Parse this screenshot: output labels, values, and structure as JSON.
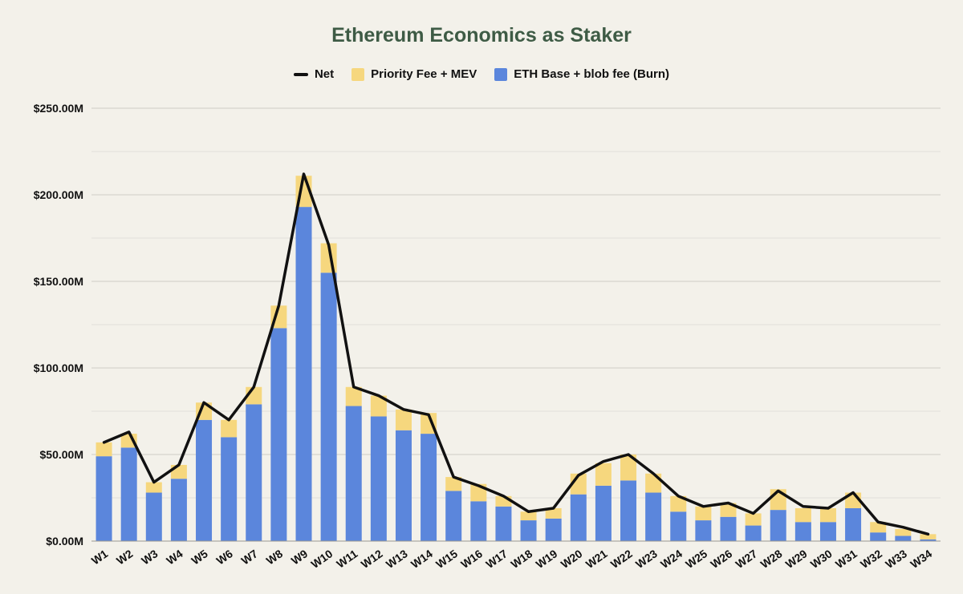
{
  "chart_data": {
    "type": "bar",
    "stacked": true,
    "title": "Ethereum Economics as Staker",
    "xlabel": "",
    "ylabel": "",
    "ylim": [
      0,
      250
    ],
    "y_unit_format": "$%.2fM",
    "y_ticks": [
      "$0.00M",
      "$50.00M",
      "$100.00M",
      "$150.00M",
      "$200.00M",
      "$250.00M"
    ],
    "y_tick_values": [
      0,
      50,
      100,
      150,
      200,
      250
    ],
    "grid": true,
    "legend_position": "top-center",
    "categories": [
      "W1",
      "W2",
      "W3",
      "W4",
      "W5",
      "W6",
      "W7",
      "W8",
      "W9",
      "W10",
      "W11",
      "W12",
      "W13",
      "W14",
      "W15",
      "W16",
      "W17",
      "W18",
      "W19",
      "W20",
      "W21",
      "W22",
      "W23",
      "W24",
      "W25",
      "W26",
      "W27",
      "W28",
      "W29",
      "W30",
      "W31",
      "W32",
      "W33",
      "W34"
    ],
    "series": [
      {
        "name": "ETH Base + blob fee (Burn)",
        "kind": "bar",
        "color": "#5b86dc",
        "values": [
          49,
          54,
          28,
          36,
          70,
          60,
          79,
          123,
          193,
          155,
          78,
          72,
          64,
          62,
          29,
          23,
          20,
          12,
          13,
          27,
          32,
          35,
          28,
          17,
          12,
          14,
          9,
          18,
          11,
          11,
          19,
          5,
          3,
          1
        ]
      },
      {
        "name": "Priority Fee + MEV",
        "kind": "bar",
        "color": "#f6d77e",
        "values": [
          8,
          8,
          6,
          8,
          10,
          10,
          10,
          13,
          18,
          17,
          11,
          12,
          12,
          12,
          8,
          10,
          6,
          5,
          6,
          12,
          13,
          15,
          11,
          9,
          8,
          8,
          7,
          12,
          8,
          8,
          9,
          6,
          4,
          3
        ]
      },
      {
        "name": "Net",
        "kind": "line",
        "color": "#111111",
        "values": [
          57,
          63,
          34,
          44,
          80,
          70,
          89,
          136,
          212,
          171,
          89,
          84,
          76,
          73,
          37,
          32,
          26,
          17,
          19,
          38,
          46,
          50,
          39,
          26,
          20,
          22,
          16,
          29,
          20,
          19,
          28,
          11,
          8,
          4
        ]
      }
    ]
  },
  "legend": {
    "items": [
      {
        "label": "Net",
        "color": "#111111",
        "shape": "line"
      },
      {
        "label": "Priority Fee + MEV",
        "color": "#f6d77e",
        "shape": "box"
      },
      {
        "label": "ETH Base + blob fee (Burn)",
        "color": "#5b86dc",
        "shape": "box"
      }
    ]
  },
  "colors": {
    "background": "#f3f1ea",
    "title": "#3e5b45",
    "gridline": "#d7d5ce"
  }
}
